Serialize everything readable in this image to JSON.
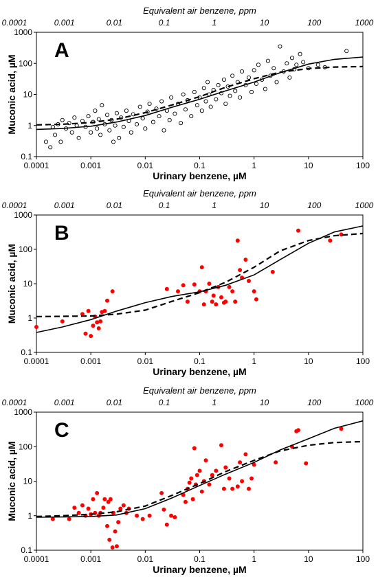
{
  "chart_data": [
    {
      "type": "scatter",
      "panel_label": "A",
      "xlabel": "Urinary benzene, µM",
      "ylabel": "Muconic acid, µM",
      "top_axis_label": "Equivalent air benzene, ppm",
      "x_scale": "log",
      "y_scale": "log",
      "xlim": [
        0.0001,
        100
      ],
      "ylim": [
        0.1,
        1000
      ],
      "x_ticks": [
        "0.0001",
        "0.001",
        "0.01",
        "0.1",
        "1",
        "10",
        "100"
      ],
      "y_ticks": [
        "0.1",
        "1",
        "10",
        "100",
        "1000"
      ],
      "top_ticks": [
        "0.0001",
        "0.001",
        "0.01",
        "0.1",
        "1",
        "10",
        "100",
        "1000"
      ],
      "marker": "open-circle",
      "point_color": "#000000",
      "solid_curve": [
        [
          0.0001,
          0.75
        ],
        [
          0.0003,
          0.8
        ],
        [
          0.001,
          0.95
        ],
        [
          0.003,
          1.3
        ],
        [
          0.01,
          2.1
        ],
        [
          0.03,
          3.8
        ],
        [
          0.1,
          7
        ],
        [
          0.3,
          13
        ],
        [
          1,
          25
        ],
        [
          3,
          50
        ],
        [
          10,
          95
        ],
        [
          30,
          135
        ],
        [
          100,
          160
        ]
      ],
      "dashed_curve": [
        [
          0.0001,
          1.05
        ],
        [
          0.0003,
          1.1
        ],
        [
          0.001,
          1.25
        ],
        [
          0.003,
          1.6
        ],
        [
          0.01,
          2.6
        ],
        [
          0.03,
          4.5
        ],
        [
          0.1,
          8.5
        ],
        [
          0.3,
          17
        ],
        [
          1,
          32
        ],
        [
          3,
          52
        ],
        [
          10,
          68
        ],
        [
          30,
          76
        ],
        [
          100,
          79
        ]
      ],
      "points": [
        [
          0.00015,
          0.3
        ],
        [
          0.00018,
          0.2
        ],
        [
          0.0002,
          0.9
        ],
        [
          0.00022,
          0.5
        ],
        [
          0.00025,
          1.1
        ],
        [
          0.00028,
          0.3
        ],
        [
          0.0003,
          1.5
        ],
        [
          0.00035,
          0.8
        ],
        [
          0.0004,
          1.2
        ],
        [
          0.00045,
          0.6
        ],
        [
          0.0005,
          1.8
        ],
        [
          0.00055,
          1
        ],
        [
          0.0006,
          0.4
        ],
        [
          0.0007,
          1.4
        ],
        [
          0.0008,
          0.9
        ],
        [
          0.0009,
          2
        ],
        [
          0.001,
          0.6
        ],
        [
          0.0011,
          1.3
        ],
        [
          0.0012,
          3
        ],
        [
          0.0013,
          0.8
        ],
        [
          0.0014,
          1.6
        ],
        [
          0.0015,
          0.5
        ],
        [
          0.0016,
          4.5
        ],
        [
          0.0018,
          1.1
        ],
        [
          0.002,
          2.2
        ],
        [
          0.0022,
          0.7
        ],
        [
          0.0024,
          1.5
        ],
        [
          0.0026,
          0.3
        ],
        [
          0.0028,
          1
        ],
        [
          0.003,
          2.5
        ],
        [
          0.0033,
          0.4
        ],
        [
          0.0036,
          1.8
        ],
        [
          0.004,
          0.9
        ],
        [
          0.0045,
          3
        ],
        [
          0.005,
          1.4
        ],
        [
          0.0055,
          0.6
        ],
        [
          0.006,
          2.3
        ],
        [
          0.007,
          1.1
        ],
        [
          0.008,
          4
        ],
        [
          0.009,
          1.7
        ],
        [
          0.01,
          0.8
        ],
        [
          0.011,
          2.8
        ],
        [
          0.012,
          5
        ],
        [
          0.014,
          1.3
        ],
        [
          0.016,
          3.5
        ],
        [
          0.018,
          2
        ],
        [
          0.02,
          6
        ],
        [
          0.022,
          0.7
        ],
        [
          0.025,
          3
        ],
        [
          0.028,
          1.5
        ],
        [
          0.03,
          8
        ],
        [
          0.035,
          2.4
        ],
        [
          0.04,
          5
        ],
        [
          0.045,
          1.2
        ],
        [
          0.05,
          10
        ],
        [
          0.055,
          3.3
        ],
        [
          0.06,
          6.5
        ],
        [
          0.07,
          2
        ],
        [
          0.08,
          12
        ],
        [
          0.09,
          4.5
        ],
        [
          0.1,
          8
        ],
        [
          0.11,
          3
        ],
        [
          0.12,
          16
        ],
        [
          0.13,
          6
        ],
        [
          0.14,
          25
        ],
        [
          0.15,
          10
        ],
        [
          0.16,
          4
        ],
        [
          0.18,
          14
        ],
        [
          0.2,
          7
        ],
        [
          0.22,
          20
        ],
        [
          0.25,
          11
        ],
        [
          0.28,
          30
        ],
        [
          0.3,
          5
        ],
        [
          0.33,
          18
        ],
        [
          0.36,
          9
        ],
        [
          0.4,
          40
        ],
        [
          0.45,
          13
        ],
        [
          0.5,
          25
        ],
        [
          0.55,
          8
        ],
        [
          0.6,
          55
        ],
        [
          0.7,
          20
        ],
        [
          0.8,
          35
        ],
        [
          0.9,
          12
        ],
        [
          1,
          60
        ],
        [
          1.1,
          22
        ],
        [
          1.2,
          90
        ],
        [
          1.4,
          30
        ],
        [
          1.6,
          15
        ],
        [
          1.8,
          120
        ],
        [
          2,
          40
        ],
        [
          2.3,
          70
        ],
        [
          2.6,
          25
        ],
        [
          3,
          350
        ],
        [
          3.5,
          55
        ],
        [
          4,
          100
        ],
        [
          4.5,
          35
        ],
        [
          5,
          150
        ],
        [
          5.5,
          65
        ],
        [
          6,
          90
        ],
        [
          7,
          200
        ],
        [
          8,
          110
        ],
        [
          10,
          70
        ],
        [
          15,
          90
        ],
        [
          20,
          75
        ],
        [
          50,
          250
        ]
      ]
    },
    {
      "type": "scatter",
      "panel_label": "B",
      "xlabel": "Urinary benzene, µM",
      "ylabel": "Muconic acid, µM",
      "top_axis_label": "Equivalent air benzene, ppm",
      "x_scale": "log",
      "y_scale": "log",
      "xlim": [
        0.0001,
        100
      ],
      "ylim": [
        0.1,
        1000
      ],
      "x_ticks": [
        "0.0001",
        "0.001",
        "0.01",
        "0.1",
        "1",
        "10",
        "100"
      ],
      "y_ticks": [
        "0.1",
        "1",
        "10",
        "100",
        "1000"
      ],
      "top_ticks": [
        "0.0001",
        "0.001",
        "0.01",
        "0.1",
        "1",
        "10",
        "100",
        "1000"
      ],
      "marker": "filled-circle",
      "point_color": "#ff0000",
      "solid_curve": [
        [
          0.0001,
          0.38
        ],
        [
          0.0003,
          0.55
        ],
        [
          0.001,
          0.9
        ],
        [
          0.003,
          1.6
        ],
        [
          0.01,
          2.8
        ],
        [
          0.03,
          4.2
        ],
        [
          0.1,
          5.8
        ],
        [
          0.3,
          9
        ],
        [
          1,
          18
        ],
        [
          3,
          50
        ],
        [
          10,
          150
        ],
        [
          30,
          320
        ],
        [
          100,
          480
        ]
      ],
      "dashed_curve": [
        [
          0.0001,
          1.1
        ],
        [
          0.0003,
          1.12
        ],
        [
          0.001,
          1.15
        ],
        [
          0.003,
          1.3
        ],
        [
          0.01,
          1.7
        ],
        [
          0.03,
          3
        ],
        [
          0.1,
          5.5
        ],
        [
          0.3,
          11
        ],
        [
          1,
          30
        ],
        [
          3,
          90
        ],
        [
          10,
          180
        ],
        [
          30,
          250
        ],
        [
          100,
          290
        ]
      ],
      "points": [
        [
          0.0001,
          0.55
        ],
        [
          0.0003,
          0.8
        ],
        [
          0.0007,
          1.3
        ],
        [
          0.0008,
          0.35
        ],
        [
          0.0009,
          1.6
        ],
        [
          0.001,
          0.3
        ],
        [
          0.0011,
          0.6
        ],
        [
          0.0012,
          1.1
        ],
        [
          0.0013,
          0.75
        ],
        [
          0.0014,
          0.5
        ],
        [
          0.0015,
          0.8
        ],
        [
          0.0016,
          1.5
        ],
        [
          0.0018,
          1.6
        ],
        [
          0.002,
          3.2
        ],
        [
          0.0025,
          6
        ],
        [
          0.025,
          7
        ],
        [
          0.04,
          6
        ],
        [
          0.05,
          9
        ],
        [
          0.06,
          3
        ],
        [
          0.08,
          9.5
        ],
        [
          0.1,
          6
        ],
        [
          0.11,
          30
        ],
        [
          0.12,
          2.5
        ],
        [
          0.13,
          6
        ],
        [
          0.15,
          10
        ],
        [
          0.17,
          3
        ],
        [
          0.18,
          4.5
        ],
        [
          0.2,
          2.5
        ],
        [
          0.22,
          8
        ],
        [
          0.25,
          4
        ],
        [
          0.28,
          2.8
        ],
        [
          0.3,
          3
        ],
        [
          0.35,
          8
        ],
        [
          0.4,
          6
        ],
        [
          0.45,
          3
        ],
        [
          0.5,
          180
        ],
        [
          0.55,
          25
        ],
        [
          0.6,
          15
        ],
        [
          0.7,
          50
        ],
        [
          0.8,
          12
        ],
        [
          1,
          6
        ],
        [
          1.1,
          3.5
        ],
        [
          2.2,
          22
        ],
        [
          6.5,
          350
        ],
        [
          25,
          180
        ],
        [
          40,
          270
        ]
      ]
    },
    {
      "type": "scatter",
      "panel_label": "C",
      "xlabel": "Urinary benzene, µM",
      "ylabel": "Muconic acid, µM",
      "top_axis_label": "Equivalent air benzene, ppm",
      "x_scale": "log",
      "y_scale": "log",
      "xlim": [
        0.0001,
        100
      ],
      "ylim": [
        0.1,
        1000
      ],
      "x_ticks": [
        "0.0001",
        "0.001",
        "0.01",
        "0.1",
        "1",
        "10",
        "100"
      ],
      "y_ticks": [
        "0.1",
        "1",
        "10",
        "100",
        "1000"
      ],
      "top_ticks": [
        "0.0001",
        "0.001",
        "0.01",
        "0.1",
        "1",
        "10",
        "100",
        "1000"
      ],
      "marker": "filled-circle",
      "point_color": "#ff0000",
      "solid_curve": [
        [
          0.0001,
          0.9
        ],
        [
          0.0003,
          0.92
        ],
        [
          0.001,
          0.95
        ],
        [
          0.003,
          1.05
        ],
        [
          0.01,
          1.6
        ],
        [
          0.03,
          3.2
        ],
        [
          0.1,
          7.5
        ],
        [
          0.3,
          16
        ],
        [
          1,
          35
        ],
        [
          3,
          80
        ],
        [
          10,
          170
        ],
        [
          30,
          340
        ],
        [
          100,
          560
        ]
      ],
      "dashed_curve": [
        [
          0.0001,
          0.95
        ],
        [
          0.0003,
          1
        ],
        [
          0.001,
          1.1
        ],
        [
          0.003,
          1.3
        ],
        [
          0.01,
          1.9
        ],
        [
          0.03,
          3.8
        ],
        [
          0.1,
          8.5
        ],
        [
          0.3,
          19
        ],
        [
          1,
          40
        ],
        [
          3,
          75
        ],
        [
          10,
          110
        ],
        [
          30,
          132
        ],
        [
          100,
          140
        ]
      ],
      "points": [
        [
          0.0002,
          0.8
        ],
        [
          0.0004,
          0.8
        ],
        [
          0.0005,
          1.7
        ],
        [
          0.0006,
          1.2
        ],
        [
          0.0007,
          2
        ],
        [
          0.0008,
          1
        ],
        [
          0.0009,
          1.6
        ],
        [
          0.001,
          1.1
        ],
        [
          0.0011,
          3
        ],
        [
          0.0012,
          1.2
        ],
        [
          0.0013,
          4.5
        ],
        [
          0.0014,
          1
        ],
        [
          0.0015,
          1.2
        ],
        [
          0.0017,
          1.7
        ],
        [
          0.0018,
          3
        ],
        [
          0.002,
          0.5
        ],
        [
          0.0021,
          2.5
        ],
        [
          0.0022,
          0.2
        ],
        [
          0.0023,
          3
        ],
        [
          0.0025,
          0.12
        ],
        [
          0.0026,
          1.2
        ],
        [
          0.0028,
          0.35
        ],
        [
          0.003,
          0.13
        ],
        [
          0.0032,
          0.65
        ],
        [
          0.0035,
          1.6
        ],
        [
          0.004,
          2
        ],
        [
          0.0045,
          1.2
        ],
        [
          0.005,
          1.6
        ],
        [
          0.007,
          1
        ],
        [
          0.009,
          0.8
        ],
        [
          0.012,
          1
        ],
        [
          0.02,
          4.5
        ],
        [
          0.022,
          1.5
        ],
        [
          0.025,
          0.55
        ],
        [
          0.03,
          1
        ],
        [
          0.035,
          0.9
        ],
        [
          0.05,
          4
        ],
        [
          0.055,
          2.5
        ],
        [
          0.06,
          6
        ],
        [
          0.065,
          9
        ],
        [
          0.07,
          12
        ],
        [
          0.075,
          3
        ],
        [
          0.08,
          90
        ],
        [
          0.085,
          8
        ],
        [
          0.09,
          15
        ],
        [
          0.1,
          20
        ],
        [
          0.11,
          5
        ],
        [
          0.12,
          10
        ],
        [
          0.13,
          40
        ],
        [
          0.15,
          8
        ],
        [
          0.17,
          15
        ],
        [
          0.2,
          20
        ],
        [
          0.25,
          110
        ],
        [
          0.28,
          6
        ],
        [
          0.3,
          25
        ],
        [
          0.35,
          12
        ],
        [
          0.4,
          6
        ],
        [
          0.5,
          7
        ],
        [
          0.55,
          35
        ],
        [
          0.6,
          10
        ],
        [
          0.7,
          60
        ],
        [
          0.8,
          6
        ],
        [
          0.9,
          12
        ],
        [
          1,
          30
        ],
        [
          2.5,
          35
        ],
        [
          5,
          100
        ],
        [
          6,
          280
        ],
        [
          6.5,
          300
        ],
        [
          9,
          33
        ],
        [
          40,
          330
        ]
      ]
    }
  ]
}
